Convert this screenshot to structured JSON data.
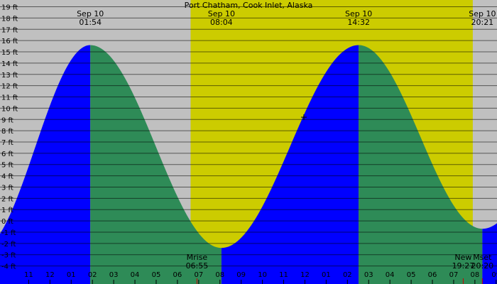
{
  "chart_data": {
    "type": "area",
    "title": "Port Chatham, Cook Inlet, Alaska",
    "colors": {
      "night_background": "#c0c0c0",
      "day_background": "#cccc00",
      "rising_fill": "#0000ff",
      "falling_fill": "#2e8b57",
      "gridline": "#000000",
      "day_mark": "#cc0000"
    },
    "x_range_hours": [
      21.65,
      45.04
    ],
    "ylim": [
      -5.6,
      19.6
    ],
    "y_ticks": [
      {
        "value": 19,
        "label": "19 ft"
      },
      {
        "value": 18,
        "label": "18 ft"
      },
      {
        "value": 17,
        "label": "17 ft"
      },
      {
        "value": 16,
        "label": "16 ft"
      },
      {
        "value": 15,
        "label": "15 ft"
      },
      {
        "value": 14,
        "label": "14 ft"
      },
      {
        "value": 13,
        "label": "13 ft"
      },
      {
        "value": 12,
        "label": "12 ft"
      },
      {
        "value": 11,
        "label": "11 ft"
      },
      {
        "value": 10,
        "label": "10 ft"
      },
      {
        "value": 9,
        "label": "9 ft"
      },
      {
        "value": 8,
        "label": "8 ft"
      },
      {
        "value": 7,
        "label": "7 ft"
      },
      {
        "value": 6,
        "label": "6 ft"
      },
      {
        "value": 5,
        "label": "5 ft"
      },
      {
        "value": 4,
        "label": "4 ft"
      },
      {
        "value": 3,
        "label": "3 ft"
      },
      {
        "value": 2,
        "label": "2 ft"
      },
      {
        "value": 1,
        "label": "1 ft"
      },
      {
        "value": 0,
        "label": "0 ft"
      },
      {
        "value": -1,
        "label": "-1 ft"
      },
      {
        "value": -2,
        "label": "-2 ft"
      },
      {
        "value": -3,
        "label": "-3 ft"
      },
      {
        "value": -4,
        "label": "-4 ft"
      }
    ],
    "tides": [
      {
        "hour": 20.7,
        "height": -2.6
      },
      {
        "hour": 25.9,
        "height": 15.6,
        "date": "Sep 10",
        "time": "01:54"
      },
      {
        "hour": 32.07,
        "height": -2.4,
        "date": "Sep 10",
        "time": "08:04"
      },
      {
        "hour": 38.53,
        "height": 15.6,
        "date": "Sep 10",
        "time": "14:32"
      },
      {
        "hour": 44.35,
        "height": -0.7,
        "date": "Sep 10",
        "time": "20:21"
      },
      {
        "hour": 50.5,
        "height": 15.4
      }
    ],
    "daylight": {
      "start_hour": 30.62,
      "end_hour": 43.9
    },
    "hour_ticks": [
      {
        "hour": 23,
        "label": "11"
      },
      {
        "hour": 24,
        "label": "12"
      },
      {
        "hour": 25,
        "label": "01"
      },
      {
        "hour": 26,
        "label": "02"
      },
      {
        "hour": 27,
        "label": "03"
      },
      {
        "hour": 28,
        "label": "04"
      },
      {
        "hour": 29,
        "label": "05"
      },
      {
        "hour": 30,
        "label": "06"
      },
      {
        "hour": 31,
        "label": "07"
      },
      {
        "hour": 32,
        "label": "08"
      },
      {
        "hour": 33,
        "label": "09"
      },
      {
        "hour": 34,
        "label": "10"
      },
      {
        "hour": 35,
        "label": "11"
      },
      {
        "hour": 36,
        "label": "12"
      },
      {
        "hour": 37,
        "label": "01"
      },
      {
        "hour": 38,
        "label": "02"
      },
      {
        "hour": 39,
        "label": "03"
      },
      {
        "hour": 40,
        "label": "04"
      },
      {
        "hour": 41,
        "label": "05"
      },
      {
        "hour": 42,
        "label": "06"
      },
      {
        "hour": 43,
        "label": "07"
      },
      {
        "hour": 44,
        "label": "08"
      },
      {
        "hour": 45,
        "label": "09"
      }
    ],
    "events": [
      {
        "hour": 30.92,
        "name": "Mrise",
        "time": "06:55"
      },
      {
        "hour": 43.45,
        "name": "New",
        "time": "19:27"
      },
      {
        "hour": 44.35,
        "name": "Mset",
        "time": "20:20"
      }
    ],
    "cursor": {
      "hour": 35.95,
      "height": 9.2
    }
  }
}
